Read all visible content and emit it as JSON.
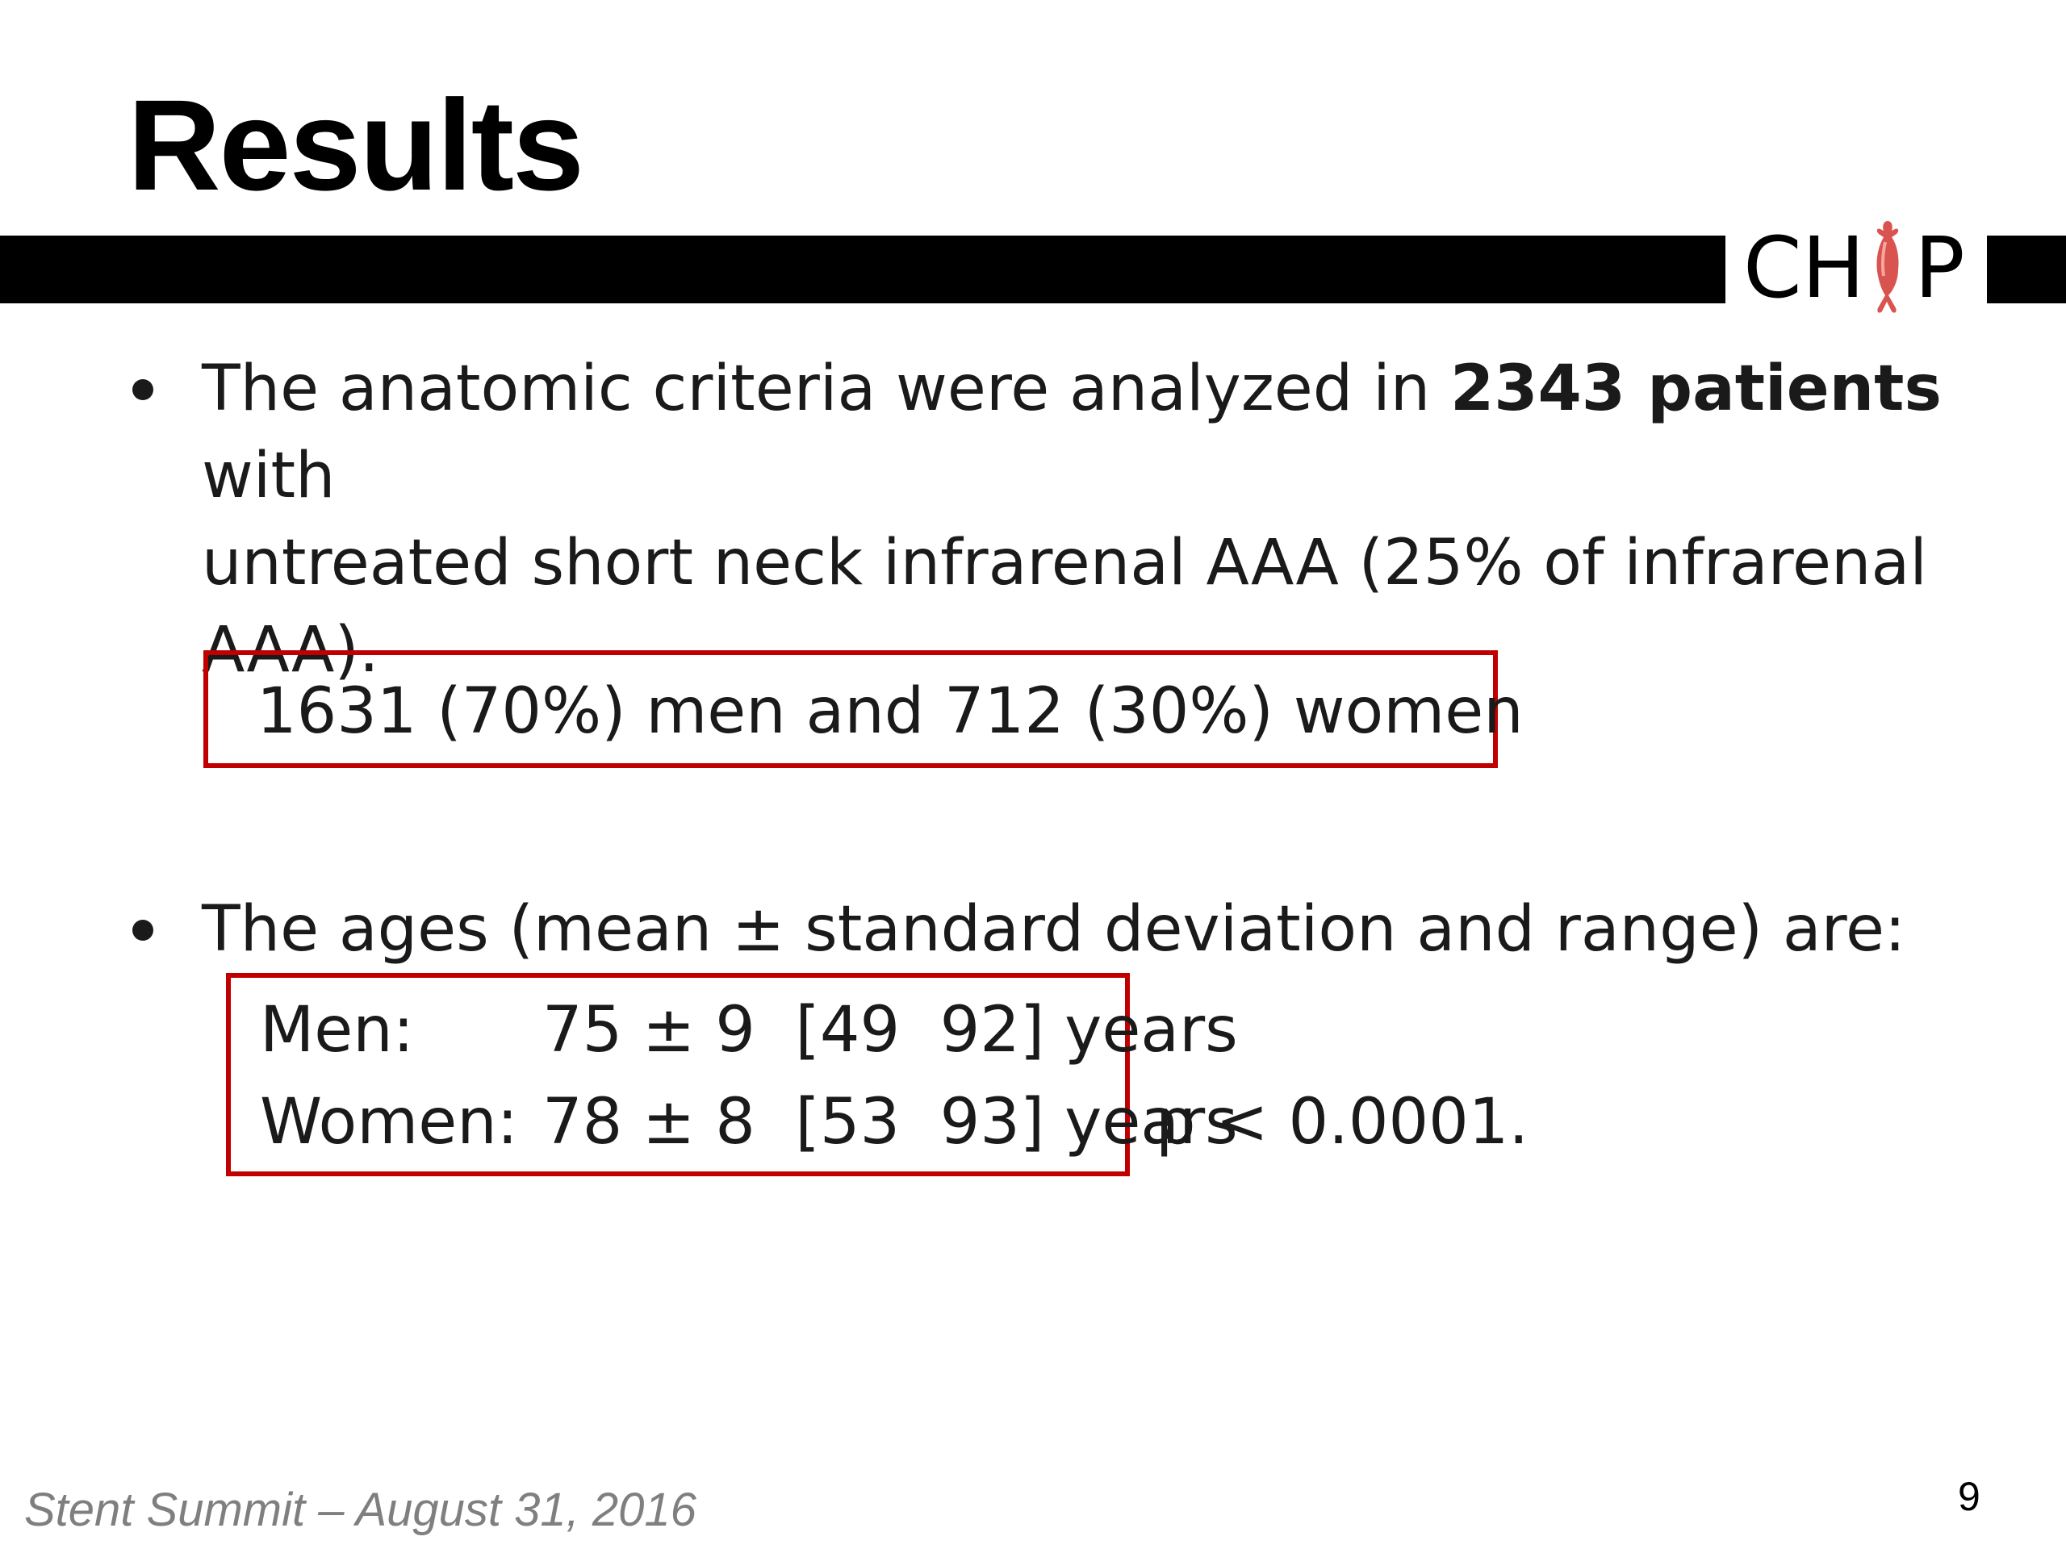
{
  "slide": {
    "title": "Results",
    "logo": {
      "prefix": "CH",
      "suffix": "P",
      "icon": "aorta-icon",
      "icon_color": "#d9534f"
    },
    "bullet1": {
      "line1_before": "The anatomic criteria were analyzed in ",
      "line1_bold": "2343 patients",
      "line1_after": " with",
      "line2": "untreated short neck infrarenal AAA (25% of infrarenal",
      "line3": "AAA)."
    },
    "highlight_box": {
      "text": "1631 (70%) men and 712 (30%) women",
      "border_color": "#c00000"
    },
    "bullet2": {
      "text": "The ages (mean ± standard deviation and range) are:",
      "rows": [
        {
          "label": "Men:",
          "value": "75 ± 9  [49  92] years"
        },
        {
          "label": "Women:",
          "value": "78 ± 8  [53  93] years"
        }
      ],
      "p_value": "p < 0.0001."
    },
    "footer": "Stent Summit – August 31, 2016",
    "page_number": "9"
  }
}
